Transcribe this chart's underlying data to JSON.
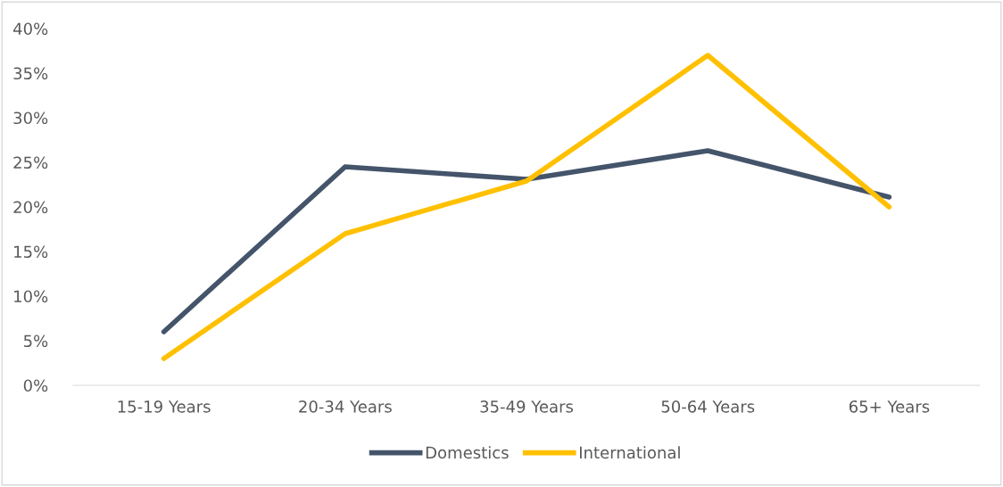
{
  "chart_data": {
    "type": "line",
    "categories": [
      "15-19 Years",
      "20-34 Years",
      "35-49 Years",
      "50-64 Years",
      "65+ Years"
    ],
    "series": [
      {
        "name": "Domestics",
        "color": "#44546a",
        "values": [
          6,
          24.5,
          23.1,
          26.3,
          21.1
        ]
      },
      {
        "name": "International",
        "color": "#ffc000",
        "values": [
          3,
          17,
          22.9,
          37,
          20
        ]
      }
    ],
    "ylim": [
      0,
      40
    ],
    "yticks": [
      {
        "value": 0,
        "label": "0%"
      },
      {
        "value": 5,
        "label": "5%"
      },
      {
        "value": 10,
        "label": "10%"
      },
      {
        "value": 15,
        "label": "15%"
      },
      {
        "value": 20,
        "label": "20%"
      },
      {
        "value": 25,
        "label": "25%"
      },
      {
        "value": 30,
        "label": "30%"
      },
      {
        "value": 35,
        "label": "35%"
      },
      {
        "value": 40,
        "label": "40%"
      }
    ],
    "grid": false,
    "legend": "bottom",
    "marker": "none",
    "line_style": "solid"
  }
}
